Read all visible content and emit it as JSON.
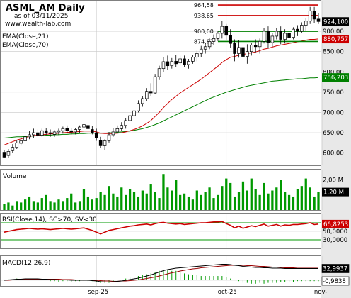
{
  "header": {
    "title": "ASML_AM Daily",
    "date_line": "as of 03/11/2025",
    "site": "www.wealth-lab.com",
    "ema_labels": [
      "EMA(Close,21)",
      "EMA(Close,70)"
    ]
  },
  "colors": {
    "up_candle": "#ffffff",
    "down_candle": "#000000",
    "ema21": "#cc0000",
    "ema70": "#008000",
    "level_red": "#cc0000",
    "level_green": "#008000",
    "volume": "#009900",
    "rsi": "#cc0000",
    "macd": "#000000",
    "macd_signal": "#990000",
    "macd_hist": "#009900",
    "grid": "#c8c8c8"
  },
  "price_panel": {
    "levels": [
      {
        "label": "964,58",
        "value": 964.58,
        "color": "red"
      },
      {
        "label": "938,65",
        "value": 938.65,
        "color": "red"
      },
      {
        "label": "900,00",
        "value": 900.0,
        "color": "green"
      },
      {
        "label": "874,82",
        "value": 874.82,
        "color": "green"
      }
    ],
    "axis_ticks": [
      "900,00",
      "850,00",
      "800,00",
      "750,00",
      "700,00",
      "650,00",
      "600,00"
    ],
    "badges": [
      {
        "label": "924,100",
        "value": 924.1,
        "bg": "#000000",
        "fg": "#ffffff"
      },
      {
        "label": "880,757",
        "value": 880.757,
        "bg": "#cc0000",
        "fg": "#ffffff"
      },
      {
        "label": "786,203",
        "value": 786.203,
        "bg": "#008000",
        "fg": "#ffffff"
      }
    ]
  },
  "volume_panel": {
    "label": "Volume",
    "axis_ticks": [
      "2,00 M"
    ],
    "badge": "1,20 M",
    "badge_value": 1.2
  },
  "rsi_panel": {
    "label": "RSI(Close,14), SC>70, SV<30",
    "axis_ticks": [
      "50,0000",
      "30,0000"
    ],
    "badge": "66,8253",
    "badge_value": 66.8253,
    "upper": 70,
    "lower": 30
  },
  "macd_panel": {
    "label": "MACD(12,26,9)",
    "badges": [
      {
        "label": "32,9937",
        "value": 32.9937
      },
      {
        "label": "-0,9838",
        "value": -0.9838
      }
    ]
  },
  "x_axis": {
    "labels": [
      {
        "label": "sep-25",
        "index": 22
      },
      {
        "label": "oct-25",
        "index": 53
      },
      {
        "label": "nov-",
        "index": 76
      }
    ]
  },
  "chart_data": {
    "type": "candlestick",
    "ylim": [
      575,
      970
    ],
    "ohlc": [
      [
        602,
        607,
        588,
        590
      ],
      [
        594,
        610,
        588,
        604
      ],
      [
        606,
        622,
        600,
        614
      ],
      [
        614,
        632,
        610,
        625
      ],
      [
        624,
        640,
        618,
        630
      ],
      [
        630,
        648,
        626,
        640
      ],
      [
        640,
        655,
        634,
        645
      ],
      [
        645,
        660,
        638,
        650
      ],
      [
        650,
        658,
        640,
        644
      ],
      [
        644,
        660,
        640,
        655
      ],
      [
        655,
        662,
        645,
        650
      ],
      [
        650,
        658,
        640,
        648
      ],
      [
        646,
        656,
        640,
        652
      ],
      [
        652,
        660,
        645,
        655
      ],
      [
        655,
        665,
        648,
        660
      ],
      [
        660,
        668,
        650,
        656
      ],
      [
        655,
        662,
        645,
        652
      ],
      [
        652,
        662,
        646,
        658
      ],
      [
        658,
        668,
        650,
        664
      ],
      [
        664,
        676,
        656,
        670
      ],
      [
        668,
        673,
        652,
        660
      ],
      [
        658,
        666,
        646,
        650
      ],
      [
        650,
        660,
        630,
        638
      ],
      [
        632,
        640,
        612,
        618
      ],
      [
        618,
        634,
        608,
        630
      ],
      [
        630,
        652,
        626,
        645
      ],
      [
        645,
        662,
        640,
        652
      ],
      [
        652,
        668,
        648,
        660
      ],
      [
        660,
        676,
        654,
        668
      ],
      [
        668,
        686,
        660,
        680
      ],
      [
        680,
        700,
        676,
        692
      ],
      [
        692,
        712,
        686,
        704
      ],
      [
        704,
        730,
        700,
        722
      ],
      [
        722,
        740,
        714,
        734
      ],
      [
        734,
        760,
        728,
        752
      ],
      [
        752,
        772,
        740,
        748
      ],
      [
        748,
        795,
        746,
        788
      ],
      [
        788,
        815,
        780,
        808
      ],
      [
        808,
        836,
        800,
        825
      ],
      [
        825,
        840,
        805,
        815
      ],
      [
        815,
        834,
        808,
        826
      ],
      [
        826,
        842,
        812,
        820
      ],
      [
        822,
        840,
        815,
        832
      ],
      [
        832,
        840,
        812,
        818
      ],
      [
        818,
        832,
        808,
        826
      ],
      [
        826,
        842,
        820,
        836
      ],
      [
        836,
        852,
        826,
        845
      ],
      [
        845,
        864,
        836,
        856
      ],
      [
        856,
        870,
        845,
        862
      ],
      [
        862,
        882,
        856,
        875
      ],
      [
        875,
        892,
        866,
        882
      ],
      [
        882,
        900,
        876,
        895
      ],
      [
        895,
        925,
        882,
        912
      ],
      [
        912,
        918,
        878,
        890
      ],
      [
        890,
        905,
        860,
        870
      ],
      [
        870,
        880,
        826,
        845
      ],
      [
        845,
        878,
        835,
        860
      ],
      [
        860,
        872,
        830,
        838
      ],
      [
        838,
        868,
        820,
        850
      ],
      [
        850,
        872,
        840,
        866
      ],
      [
        866,
        880,
        848,
        862
      ],
      [
        862,
        882,
        845,
        875
      ],
      [
        875,
        908,
        870,
        900
      ],
      [
        900,
        912,
        858,
        872
      ],
      [
        872,
        895,
        862,
        888
      ],
      [
        888,
        908,
        880,
        900
      ],
      [
        900,
        912,
        868,
        880
      ],
      [
        880,
        905,
        870,
        895
      ],
      [
        895,
        902,
        862,
        885
      ],
      [
        885,
        910,
        880,
        905
      ],
      [
        905,
        915,
        888,
        900
      ],
      [
        900,
        922,
        895,
        915
      ],
      [
        915,
        932,
        900,
        925
      ],
      [
        925,
        960,
        918,
        950
      ],
      [
        950,
        960,
        920,
        930
      ],
      [
        930,
        945,
        918,
        924
      ]
    ],
    "ema21": [
      620,
      624,
      628,
      632,
      635,
      638,
      641,
      643,
      644,
      645,
      646,
      647,
      648,
      649,
      650,
      651,
      651,
      652,
      653,
      654,
      654,
      654,
      652,
      649,
      648,
      648,
      648,
      649,
      650,
      652,
      655,
      658,
      662,
      667,
      673,
      680,
      690,
      700,
      712,
      722,
      732,
      740,
      748,
      755,
      762,
      768,
      775,
      782,
      790,
      798,
      806,
      814,
      823,
      830,
      836,
      838,
      841,
      843,
      845,
      847,
      849,
      852,
      856,
      858,
      861,
      864,
      866,
      868,
      870,
      872,
      874,
      876,
      878,
      880,
      880,
      881
    ],
    "ema70": [
      637,
      638,
      639,
      640,
      640,
      641,
      642,
      642,
      643,
      643,
      644,
      644,
      645,
      645,
      646,
      646,
      647,
      647,
      648,
      648,
      649,
      649,
      649,
      649,
      649,
      650,
      650,
      651,
      652,
      653,
      654,
      656,
      658,
      660,
      663,
      666,
      670,
      674,
      679,
      684,
      689,
      694,
      699,
      704,
      709,
      714,
      719,
      724,
      729,
      734,
      738,
      742,
      746,
      750,
      753,
      756,
      759,
      762,
      765,
      767,
      769,
      771,
      773,
      775,
      777,
      778,
      779,
      780,
      781,
      782,
      783,
      783,
      784,
      785,
      785,
      786
    ],
    "volume": [
      0.4,
      0.5,
      0.3,
      0.6,
      0.5,
      0.7,
      0.9,
      0.6,
      0.5,
      0.8,
      1.0,
      0.6,
      0.5,
      0.7,
      0.6,
      0.8,
      1.1,
      0.5,
      0.6,
      1.4,
      0.9,
      0.7,
      0.8,
      1.2,
      1.0,
      1.6,
      1.1,
      0.9,
      1.5,
      1.0,
      1.4,
      1.2,
      0.9,
      1.3,
      1.1,
      1.7,
      1.2,
      0.8,
      2.4,
      1.5,
      1.3,
      2.0,
      1.0,
      1.1,
      0.9,
      0.7,
      1.3,
      1.0,
      1.2,
      1.5,
      0.8,
      1.0,
      1.6,
      2.1,
      1.8,
      0.9,
      1.2,
      1.9,
      1.3,
      2.1,
      1.4,
      1.0,
      1.8,
      1.1,
      1.3,
      1.5,
      2.0,
      1.2,
      1.0,
      0.9,
      1.4,
      1.6,
      2.1,
      1.5,
      0.9,
      1.2
    ],
    "rsi": [
      48,
      50,
      52,
      54,
      55,
      56,
      57,
      56,
      55,
      56,
      55,
      54,
      55,
      56,
      57,
      56,
      55,
      56,
      57,
      58,
      55,
      52,
      48,
      44,
      48,
      52,
      54,
      56,
      58,
      60,
      62,
      63,
      65,
      66,
      67,
      65,
      68,
      70,
      71,
      69,
      68,
      67,
      68,
      66,
      67,
      68,
      69,
      70,
      70,
      71,
      72,
      72,
      73,
      68,
      64,
      58,
      62,
      57,
      60,
      63,
      61,
      64,
      67,
      62,
      64,
      66,
      62,
      65,
      64,
      66,
      66,
      67,
      68,
      70,
      66,
      67
    ],
    "macd": [
      0,
      1,
      2,
      3,
      3,
      4,
      4,
      4,
      4,
      3,
      3,
      2,
      2,
      1,
      1,
      1,
      0,
      0,
      0,
      0,
      0,
      -1,
      -2,
      -4,
      -5,
      -5,
      -4,
      -3,
      -2,
      0,
      2,
      4,
      6,
      9,
      12,
      15,
      19,
      23,
      27,
      30,
      32,
      34,
      35,
      36,
      37,
      38,
      39,
      40,
      41,
      42,
      43,
      44,
      45,
      45,
      44,
      42,
      41,
      39,
      38,
      37,
      36,
      36,
      35,
      35,
      34,
      34,
      34,
      33,
      33,
      33,
      33,
      33,
      33,
      33,
      33,
      33
    ],
    "macd_signal": [
      0,
      0,
      1,
      1,
      2,
      2,
      3,
      3,
      3,
      3,
      3,
      3,
      3,
      3,
      2,
      2,
      2,
      1,
      1,
      1,
      1,
      0,
      0,
      -1,
      -2,
      -2,
      -3,
      -3,
      -2,
      -2,
      -1,
      0,
      1,
      3,
      5,
      7,
      9,
      12,
      15,
      18,
      21,
      23,
      26,
      28,
      30,
      32,
      33,
      35,
      36,
      37,
      38,
      39,
      40,
      41,
      42,
      42,
      42,
      42,
      41,
      41,
      40,
      39,
      39,
      38,
      37,
      37,
      36,
      35,
      35,
      35,
      34,
      34,
      34,
      34,
      34,
      34
    ],
    "macd_hist": [
      0,
      1,
      1,
      2,
      1,
      2,
      1,
      1,
      1,
      0,
      0,
      -1,
      -1,
      -2,
      -1,
      -1,
      -2,
      -1,
      -1,
      -1,
      -1,
      -1,
      -2,
      -3,
      -3,
      -3,
      -1,
      0,
      0,
      2,
      3,
      4,
      5,
      6,
      7,
      8,
      10,
      11,
      12,
      12,
      11,
      11,
      9,
      8,
      7,
      6,
      6,
      5,
      5,
      5,
      5,
      5,
      5,
      4,
      2,
      0,
      -1,
      -3,
      -3,
      -4,
      -4,
      -3,
      -4,
      -3,
      -3,
      -3,
      -2,
      -2,
      -2,
      -2,
      -1,
      -1,
      -1,
      -1,
      -1,
      -1
    ]
  }
}
